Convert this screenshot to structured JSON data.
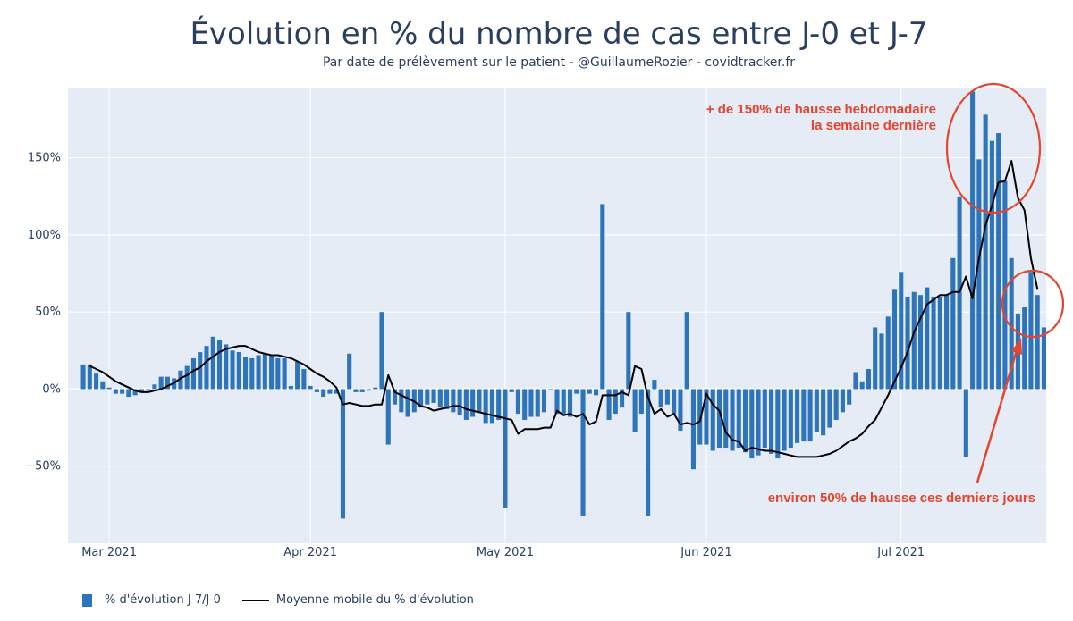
{
  "chart_data": {
    "type": "bar",
    "title": "Évolution en % du nombre de cas entre J-0 et J-7",
    "subtitle": "Par date de prélèvement sur le patient - @GuillaumeRozier - covidtracker.fr",
    "x_ticks": [
      "Mar 2021",
      "Apr 2021",
      "May 2021",
      "Jun 2021",
      "Jul 2021"
    ],
    "x_tick_dates": [
      "2021-03-01",
      "2021-04-01",
      "2021-05-01",
      "2021-06-01",
      "2021-07-01"
    ],
    "x_start": "2021-02-23",
    "ylim": [
      -100,
      195
    ],
    "y_ticks": [
      -50,
      0,
      50,
      100,
      150
    ],
    "y_tick_labels": [
      "−50%",
      "0%",
      "50%",
      "100%",
      "150%"
    ],
    "grid": true,
    "legend_position": "bottom-left",
    "series": [
      {
        "name": "% d'évolution J-7/J-0",
        "type": "bar",
        "color": "#2e74bb",
        "values": [
          16,
          16,
          10,
          5,
          1,
          -3,
          -3,
          -5,
          -4,
          -2,
          -1,
          3,
          8,
          8,
          7,
          12,
          15,
          20,
          24,
          28,
          34,
          32,
          29,
          25,
          24,
          21,
          20,
          22,
          23,
          22,
          20,
          20,
          2,
          18,
          13,
          2,
          -2,
          -5,
          -3,
          -3,
          -84,
          23,
          -2,
          -2,
          -1,
          1,
          50,
          -36,
          -10,
          -15,
          -18,
          -15,
          -12,
          -10,
          -9,
          -12,
          -13,
          -15,
          -17,
          -20,
          -18,
          -15,
          -22,
          -22,
          -20,
          -77,
          -2,
          -16,
          -20,
          -18,
          -18,
          -15,
          0,
          -16,
          -17,
          -18,
          -3,
          -82,
          -3,
          -4,
          120,
          -20,
          -16,
          -12,
          50,
          -28,
          -16,
          -82,
          6,
          -12,
          -10,
          -17,
          -27,
          50,
          -52,
          -36,
          -36,
          -40,
          -38,
          -38,
          -40,
          -38,
          -41,
          -45,
          -43,
          -38,
          -42,
          -45,
          -40,
          -38,
          -35,
          -34,
          -34,
          -28,
          -30,
          -25,
          -20,
          -15,
          -10,
          11,
          5,
          13,
          40,
          36,
          47,
          65,
          76,
          60,
          63,
          61,
          66,
          60,
          60,
          61,
          85,
          125,
          -44,
          193,
          149,
          178,
          161,
          166,
          135,
          85,
          49,
          53,
          76,
          61,
          40
        ],
        "last_date": "2021-07-23"
      },
      {
        "name": "Moyenne mobile du % d'évolution",
        "type": "line",
        "color": "#000000",
        "values": [
          15,
          13,
          11,
          8,
          5,
          3,
          1,
          -1,
          -2,
          -2,
          -1,
          0,
          2,
          4,
          7,
          9,
          12,
          14,
          18,
          21,
          24,
          26,
          27,
          28,
          28,
          26,
          24,
          23,
          22,
          22,
          21,
          20,
          18,
          16,
          13,
          10,
          8,
          5,
          1,
          -10,
          -9,
          -10,
          -11,
          -11,
          -10,
          -10,
          9,
          -2,
          -4,
          -6,
          -8,
          -11,
          -12,
          -14,
          -13,
          -12,
          -11,
          -11,
          -13,
          -14,
          -15,
          -16,
          -17,
          -18,
          -19,
          -20,
          -29,
          -26,
          -26,
          -26,
          -25,
          -25,
          -14,
          -17,
          -16,
          -18,
          -16,
          -23,
          -21,
          -4,
          -4,
          -4,
          -2,
          -4,
          15,
          13,
          -5,
          -16,
          -13,
          -18,
          -16,
          -23,
          -22,
          -23,
          -21,
          -3,
          -10,
          -14,
          -28,
          -33,
          -34,
          -40,
          -38,
          -39,
          -40,
          -40,
          -41,
          -42,
          -43,
          -44,
          -44,
          -44,
          -44,
          -43,
          -42,
          -40,
          -37,
          -34,
          -32,
          -29,
          -24,
          -20,
          -12,
          -4,
          5,
          14,
          24,
          37,
          46,
          55,
          58,
          61,
          61,
          63,
          63,
          73,
          59,
          85,
          106,
          119,
          134,
          135,
          148,
          124,
          116,
          85,
          65
        ],
        "last_date": "2021-07-22"
      }
    ],
    "annotations": [
      {
        "text": "+ de 150% de hausse hebdomadaire",
        "anchor": "right"
      },
      {
        "text": "la semaine dernière",
        "anchor": "right"
      },
      {
        "text": "environ 50% de hausse ces derniers jours",
        "anchor": "right"
      }
    ],
    "annotation_color": "#e3452f"
  },
  "legend": {
    "bar_label": "% d'évolution J-7/J-0",
    "line_label": "Moyenne mobile du % d'évolution"
  },
  "colors": {
    "plot_background": "#e5ecf6",
    "grid": "#ffffff",
    "text": "#2a3f5f"
  }
}
